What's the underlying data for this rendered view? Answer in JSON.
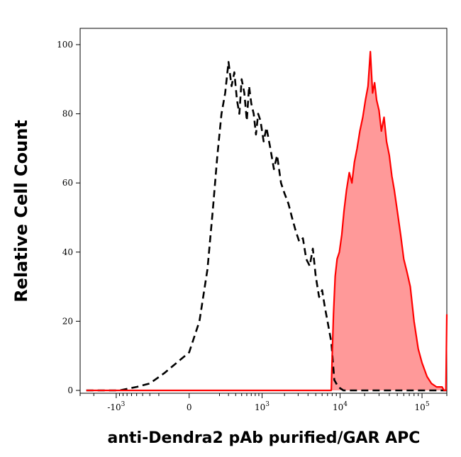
{
  "chart_data": {
    "type": "area",
    "title": "",
    "xlabel": "anti-Dendra2 pAb purified/GAR APC",
    "ylabel": "Relative Cell Count",
    "x_scale": "biexponential",
    "xlim": [
      -3000,
      200000
    ],
    "ylim": [
      0,
      102
    ],
    "x_ticks": [
      {
        "value": -1000,
        "base": "-10",
        "exp": "3"
      },
      {
        "value": 0,
        "base": "0",
        "exp": ""
      },
      {
        "value": 1000,
        "base": "10",
        "exp": "3"
      },
      {
        "value": 10000,
        "base": "10",
        "exp": "4"
      },
      {
        "value": 100000,
        "base": "10",
        "exp": "5"
      }
    ],
    "y_ticks": [
      0,
      20,
      40,
      60,
      80,
      100
    ],
    "grid": false,
    "legend": "none",
    "series": [
      {
        "style": "dashed",
        "color": "#000000",
        "fill": "none",
        "x": [
          -2500,
          -1500,
          -900,
          -500,
          -300,
          -150,
          0,
          50,
          100,
          140,
          180,
          220,
          260,
          300,
          340,
          380,
          420,
          460,
          500,
          550,
          600,
          650,
          700,
          760,
          820,
          880,
          950,
          1050,
          1150,
          1300,
          1450,
          1600,
          1800,
          2000,
          2250,
          2500,
          2800,
          3100,
          3450,
          3800,
          4200,
          4600,
          5000,
          5500,
          6000,
          6500,
          7000,
          7800,
          8500,
          9500,
          11000,
          13000,
          16000,
          20000,
          30000,
          60000,
          100000,
          200000
        ],
        "y": [
          0,
          0,
          0,
          1,
          2,
          5,
          11,
          20,
          35,
          52,
          68,
          80,
          86,
          95,
          88,
          92,
          84,
          80,
          90,
          86,
          78,
          88,
          83,
          80,
          74,
          80,
          78,
          72,
          76,
          70,
          64,
          68,
          60,
          57,
          54,
          50,
          46,
          43,
          44,
          38,
          36,
          41,
          33,
          27,
          29,
          24,
          20,
          14,
          3,
          1,
          0,
          0,
          0,
          0,
          0,
          0,
          0,
          0
        ]
      },
      {
        "style": "solid",
        "color": "#ff0000",
        "fill": "#ff9999",
        "x": [
          -2500,
          0,
          1000,
          5000,
          7800,
          8000,
          8300,
          8700,
          9200,
          9800,
          10500,
          11200,
          12000,
          13000,
          14000,
          15000,
          16200,
          17500,
          19000,
          20500,
          22000,
          23500,
          25000,
          26500,
          28000,
          30000,
          32000,
          34500,
          37000,
          40000,
          43000,
          46000,
          50000,
          55000,
          60000,
          66000,
          72000,
          80000,
          90000,
          100000,
          115000,
          130000,
          150000,
          175000,
          185000,
          195000,
          200000
        ],
        "y": [
          0,
          0,
          0,
          0,
          0,
          10,
          22,
          33,
          38,
          40,
          45,
          52,
          58,
          63,
          60,
          66,
          70,
          75,
          79,
          84,
          88,
          98,
          86,
          89,
          84,
          81,
          75,
          79,
          72,
          68,
          62,
          58,
          52,
          45,
          38,
          34,
          30,
          20,
          12,
          8,
          4,
          2,
          1,
          1,
          0,
          0,
          22
        ]
      }
    ]
  }
}
